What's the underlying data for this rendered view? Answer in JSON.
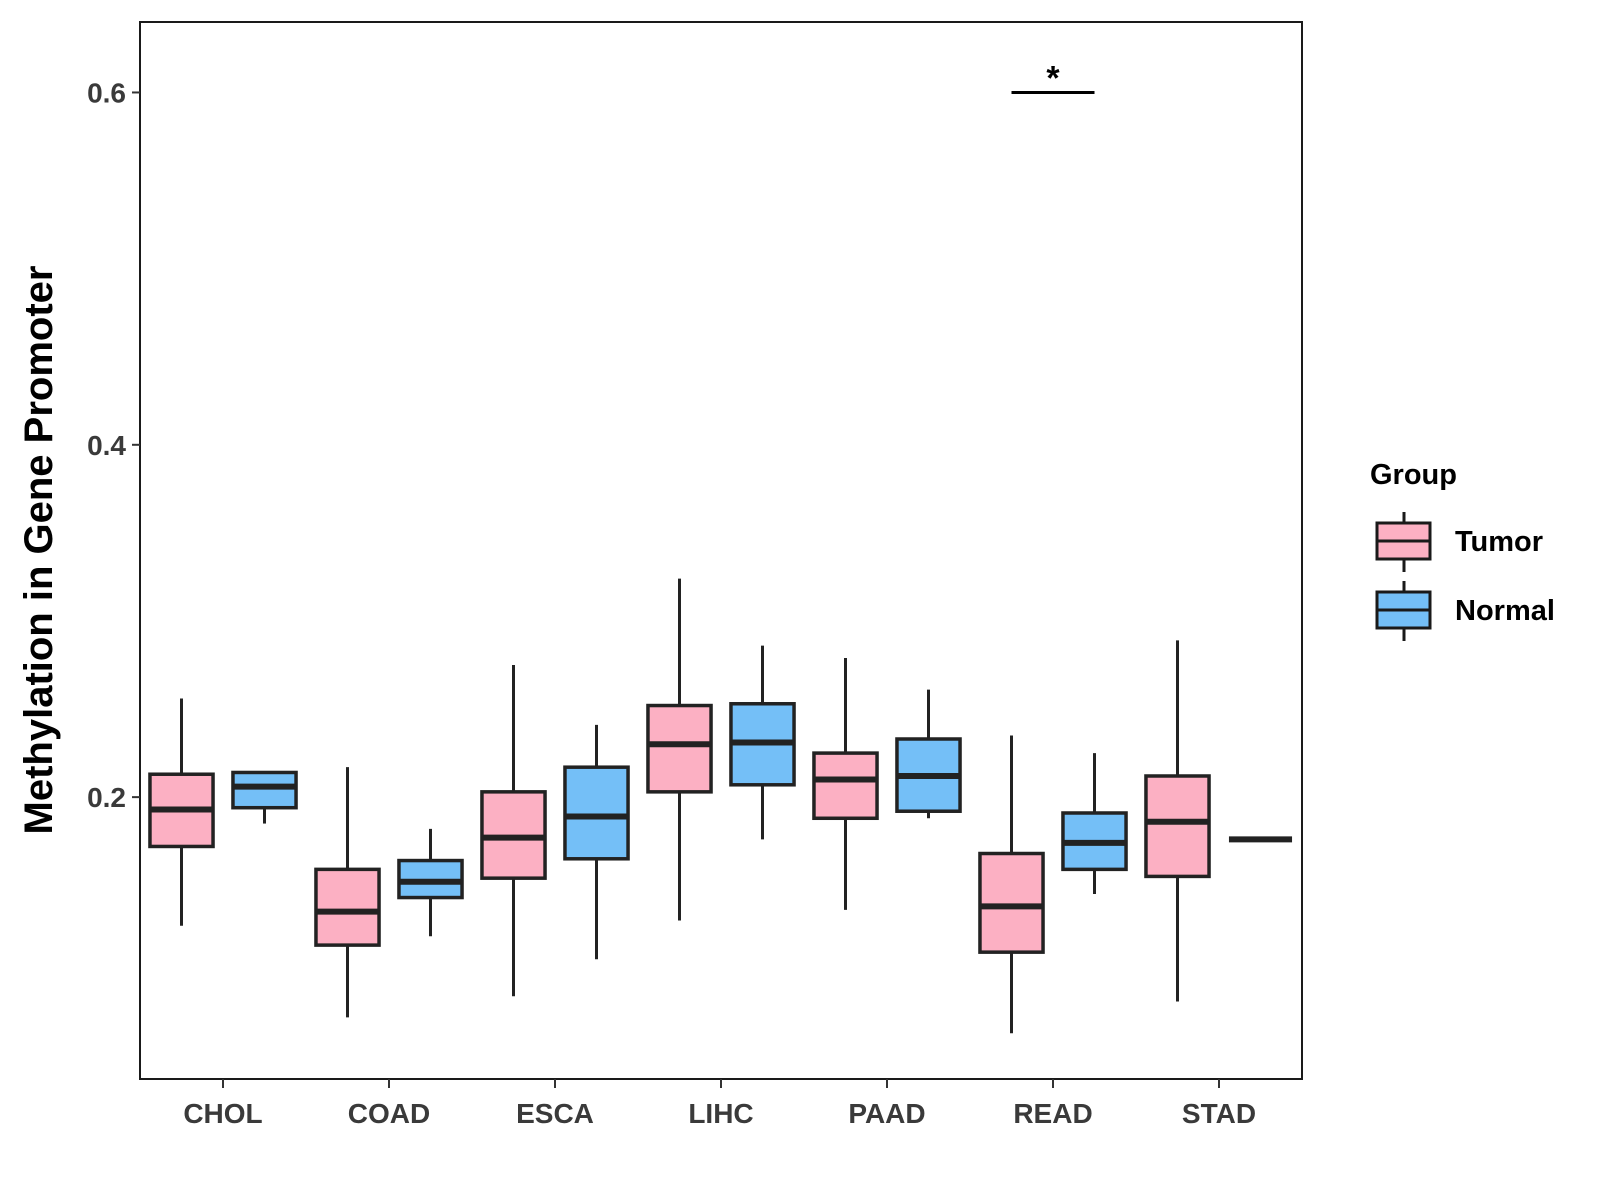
{
  "chart_data": {
    "type": "boxplot",
    "title": "",
    "xlabel": "",
    "ylabel": "Methylation in Gene Promoter",
    "ylim": [
      0.04,
      0.64
    ],
    "yticks": [
      0.2,
      0.4,
      0.6
    ],
    "ytick_labels": [
      "0.2",
      "0.4",
      "0.6"
    ],
    "grid": false,
    "legend": {
      "title": "Group",
      "position": "right",
      "entries": [
        "Tumor",
        "Normal"
      ]
    },
    "categories": [
      "CHOL",
      "COAD",
      "ESCA",
      "LIHC",
      "PAAD",
      "READ",
      "STAD"
    ],
    "series": [
      {
        "name": "Tumor",
        "color": "#fcb0c3",
        "boxes": [
          {
            "min": 0.127,
            "q1": 0.172,
            "median": 0.193,
            "q3": 0.213,
            "max": 0.256
          },
          {
            "min": 0.075,
            "q1": 0.116,
            "median": 0.135,
            "q3": 0.159,
            "max": 0.217
          },
          {
            "min": 0.087,
            "q1": 0.154,
            "median": 0.177,
            "q3": 0.203,
            "max": 0.275
          },
          {
            "min": 0.13,
            "q1": 0.203,
            "median": 0.23,
            "q3": 0.252,
            "max": 0.324
          },
          {
            "min": 0.136,
            "q1": 0.188,
            "median": 0.21,
            "q3": 0.225,
            "max": 0.279
          },
          {
            "min": 0.066,
            "q1": 0.112,
            "median": 0.138,
            "q3": 0.168,
            "max": 0.235
          },
          {
            "min": 0.084,
            "q1": 0.155,
            "median": 0.186,
            "q3": 0.212,
            "max": 0.289
          }
        ]
      },
      {
        "name": "Normal",
        "color": "#74bff7",
        "boxes": [
          {
            "min": 0.185,
            "q1": 0.194,
            "median": 0.206,
            "q3": 0.214,
            "max": 0.214
          },
          {
            "min": 0.121,
            "q1": 0.143,
            "median": 0.152,
            "q3": 0.164,
            "max": 0.182
          },
          {
            "min": 0.108,
            "q1": 0.165,
            "median": 0.189,
            "q3": 0.217,
            "max": 0.241
          },
          {
            "min": 0.176,
            "q1": 0.207,
            "median": 0.231,
            "q3": 0.253,
            "max": 0.286
          },
          {
            "min": 0.188,
            "q1": 0.192,
            "median": 0.212,
            "q3": 0.233,
            "max": 0.261
          },
          {
            "min": 0.145,
            "q1": 0.159,
            "median": 0.174,
            "q3": 0.191,
            "max": 0.225
          },
          {
            "min": 0.176,
            "q1": 0.176,
            "median": 0.176,
            "q3": 0.176,
            "max": 0.176
          }
        ]
      }
    ],
    "annotations": [
      {
        "category": "READ",
        "label": "*",
        "y": 0.6
      }
    ]
  }
}
